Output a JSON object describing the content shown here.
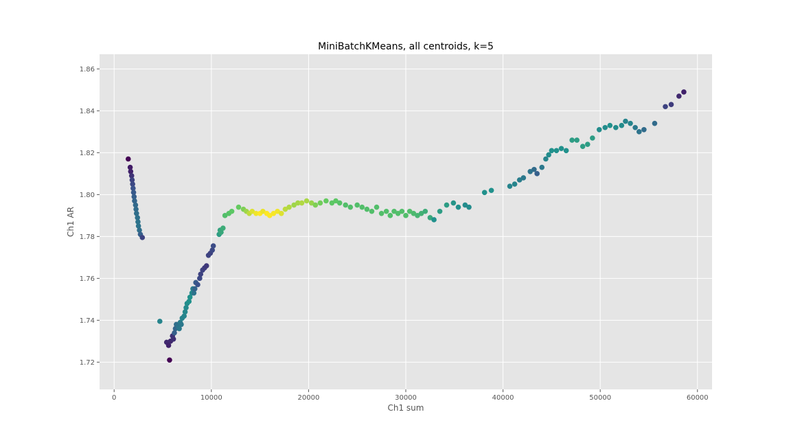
{
  "chart_data": {
    "type": "scatter",
    "title": "MiniBatchKMeans, all centroids, k=5",
    "xlabel": "Ch1 sum",
    "ylabel": "Ch1 AR",
    "xlim": [
      -1500,
      61500
    ],
    "ylim": [
      1.707,
      1.867
    ],
    "xticks": [
      0,
      10000,
      20000,
      30000,
      40000,
      50000,
      60000
    ],
    "yticks": [
      1.72,
      1.74,
      1.76,
      1.78,
      1.8,
      1.82,
      1.84,
      1.86
    ],
    "ytick_labels": [
      "1.72",
      "1.74",
      "1.76",
      "1.78",
      "1.80",
      "1.82",
      "1.84",
      "1.86"
    ],
    "grid": true,
    "colormap": "viridis",
    "background": "#e5e5e5",
    "points": [
      [
        1450,
        1.817,
        0.0
      ],
      [
        1650,
        1.813,
        0.08
      ],
      [
        1700,
        1.811,
        0.1
      ],
      [
        1800,
        1.809,
        0.15
      ],
      [
        1850,
        1.807,
        0.2
      ],
      [
        1900,
        1.805,
        0.22
      ],
      [
        1950,
        1.803,
        0.25
      ],
      [
        2000,
        1.801,
        0.28
      ],
      [
        2050,
        1.799,
        0.3
      ],
      [
        2100,
        1.797,
        0.32
      ],
      [
        2200,
        1.795,
        0.34
      ],
      [
        2250,
        1.793,
        0.35
      ],
      [
        2300,
        1.791,
        0.36
      ],
      [
        2400,
        1.789,
        0.37
      ],
      [
        2450,
        1.787,
        0.38
      ],
      [
        2500,
        1.785,
        0.38
      ],
      [
        2600,
        1.783,
        0.36
      ],
      [
        2700,
        1.781,
        0.3
      ],
      [
        2900,
        1.7795,
        0.2
      ],
      [
        4700,
        1.7395,
        0.45
      ],
      [
        5400,
        1.7295,
        0.12
      ],
      [
        5600,
        1.728,
        0.1
      ],
      [
        5800,
        1.73,
        0.12
      ],
      [
        5700,
        1.721,
        0.0
      ],
      [
        6100,
        1.731,
        0.14
      ],
      [
        6000,
        1.7325,
        0.15
      ],
      [
        6200,
        1.734,
        0.3
      ],
      [
        6300,
        1.736,
        0.33
      ],
      [
        6400,
        1.738,
        0.36
      ],
      [
        6600,
        1.737,
        0.38
      ],
      [
        6700,
        1.736,
        0.4
      ],
      [
        6800,
        1.739,
        0.42
      ],
      [
        6900,
        1.738,
        0.4
      ],
      [
        7000,
        1.741,
        0.44
      ],
      [
        7200,
        1.742,
        0.45
      ],
      [
        7300,
        1.744,
        0.46
      ],
      [
        7400,
        1.746,
        0.47
      ],
      [
        7500,
        1.748,
        0.48
      ],
      [
        7700,
        1.749,
        0.5
      ],
      [
        7800,
        1.751,
        0.5
      ],
      [
        8000,
        1.753,
        0.48
      ],
      [
        8100,
        1.755,
        0.42
      ],
      [
        8200,
        1.753,
        0.38
      ],
      [
        8300,
        1.755,
        0.32
      ],
      [
        8400,
        1.758,
        0.28
      ],
      [
        8600,
        1.757,
        0.25
      ],
      [
        8800,
        1.76,
        0.22
      ],
      [
        8900,
        1.762,
        0.2
      ],
      [
        9100,
        1.764,
        0.2
      ],
      [
        9300,
        1.765,
        0.18
      ],
      [
        9500,
        1.766,
        0.17
      ],
      [
        9700,
        1.771,
        0.2
      ],
      [
        9900,
        1.772,
        0.2
      ],
      [
        10100,
        1.7735,
        0.22
      ],
      [
        10200,
        1.7755,
        0.23
      ],
      [
        10800,
        1.781,
        0.55
      ],
      [
        10900,
        1.783,
        0.58
      ],
      [
        11000,
        1.782,
        0.6
      ],
      [
        11200,
        1.784,
        0.62
      ],
      [
        11400,
        1.79,
        0.7
      ],
      [
        11800,
        1.791,
        0.72
      ],
      [
        12100,
        1.792,
        0.74
      ],
      [
        12800,
        1.794,
        0.76
      ],
      [
        13300,
        1.793,
        0.8
      ],
      [
        13600,
        1.792,
        0.85
      ],
      [
        13900,
        1.791,
        0.9
      ],
      [
        14200,
        1.792,
        0.95
      ],
      [
        14600,
        1.791,
        0.98
      ],
      [
        15000,
        1.791,
        1.0
      ],
      [
        15300,
        1.792,
        0.97
      ],
      [
        15700,
        1.791,
        1.0
      ],
      [
        16000,
        1.79,
        1.0
      ],
      [
        16400,
        1.791,
        0.99
      ],
      [
        16800,
        1.792,
        0.98
      ],
      [
        17200,
        1.791,
        0.95
      ],
      [
        17600,
        1.793,
        0.9
      ],
      [
        18000,
        1.794,
        0.88
      ],
      [
        18500,
        1.795,
        0.85
      ],
      [
        18900,
        1.796,
        0.86
      ],
      [
        19300,
        1.796,
        0.88
      ],
      [
        19800,
        1.797,
        0.87
      ],
      [
        20300,
        1.796,
        0.84
      ],
      [
        20700,
        1.795,
        0.8
      ],
      [
        21200,
        1.796,
        0.78
      ],
      [
        21800,
        1.797,
        0.76
      ],
      [
        22400,
        1.796,
        0.74
      ],
      [
        22800,
        1.797,
        0.74
      ],
      [
        23200,
        1.796,
        0.72
      ],
      [
        23800,
        1.795,
        0.7
      ],
      [
        24300,
        1.794,
        0.7
      ],
      [
        25000,
        1.795,
        0.7
      ],
      [
        25500,
        1.794,
        0.7
      ],
      [
        26000,
        1.793,
        0.7
      ],
      [
        26500,
        1.792,
        0.7
      ],
      [
        27000,
        1.794,
        0.7
      ],
      [
        27500,
        1.791,
        0.7
      ],
      [
        28000,
        1.792,
        0.7
      ],
      [
        28400,
        1.79,
        0.7
      ],
      [
        28800,
        1.792,
        0.7
      ],
      [
        29200,
        1.791,
        0.7
      ],
      [
        29600,
        1.792,
        0.7
      ],
      [
        30000,
        1.79,
        0.7
      ],
      [
        30400,
        1.792,
        0.7
      ],
      [
        30800,
        1.791,
        0.68
      ],
      [
        31200,
        1.79,
        0.66
      ],
      [
        31600,
        1.791,
        0.64
      ],
      [
        32000,
        1.792,
        0.62
      ],
      [
        32500,
        1.789,
        0.6
      ],
      [
        32900,
        1.788,
        0.5
      ],
      [
        33500,
        1.792,
        0.55
      ],
      [
        34200,
        1.795,
        0.55
      ],
      [
        34900,
        1.796,
        0.52
      ],
      [
        35400,
        1.794,
        0.5
      ],
      [
        36100,
        1.795,
        0.48
      ],
      [
        36500,
        1.794,
        0.48
      ],
      [
        38100,
        1.801,
        0.5
      ],
      [
        38800,
        1.802,
        0.5
      ],
      [
        40700,
        1.804,
        0.45
      ],
      [
        41200,
        1.805,
        0.45
      ],
      [
        41700,
        1.807,
        0.42
      ],
      [
        42100,
        1.808,
        0.4
      ],
      [
        42800,
        1.811,
        0.38
      ],
      [
        43200,
        1.812,
        0.35
      ],
      [
        43500,
        1.81,
        0.3
      ],
      [
        44000,
        1.813,
        0.4
      ],
      [
        44400,
        1.817,
        0.45
      ],
      [
        44700,
        1.819,
        0.48
      ],
      [
        45000,
        1.821,
        0.5
      ],
      [
        45500,
        1.821,
        0.5
      ],
      [
        46000,
        1.822,
        0.5
      ],
      [
        46500,
        1.821,
        0.5
      ],
      [
        47100,
        1.826,
        0.55
      ],
      [
        47600,
        1.826,
        0.55
      ],
      [
        48200,
        1.823,
        0.55
      ],
      [
        48700,
        1.824,
        0.55
      ],
      [
        49200,
        1.827,
        0.55
      ],
      [
        49900,
        1.831,
        0.48
      ],
      [
        50500,
        1.832,
        0.48
      ],
      [
        51000,
        1.833,
        0.5
      ],
      [
        51600,
        1.832,
        0.48
      ],
      [
        52200,
        1.833,
        0.48
      ],
      [
        52600,
        1.835,
        0.45
      ],
      [
        53100,
        1.834,
        0.45
      ],
      [
        53600,
        1.832,
        0.4
      ],
      [
        54000,
        1.83,
        0.38
      ],
      [
        54500,
        1.831,
        0.35
      ],
      [
        55600,
        1.834,
        0.35
      ],
      [
        56700,
        1.842,
        0.2
      ],
      [
        57300,
        1.843,
        0.18
      ],
      [
        58100,
        1.847,
        0.12
      ],
      [
        58600,
        1.849,
        0.1
      ]
    ]
  }
}
